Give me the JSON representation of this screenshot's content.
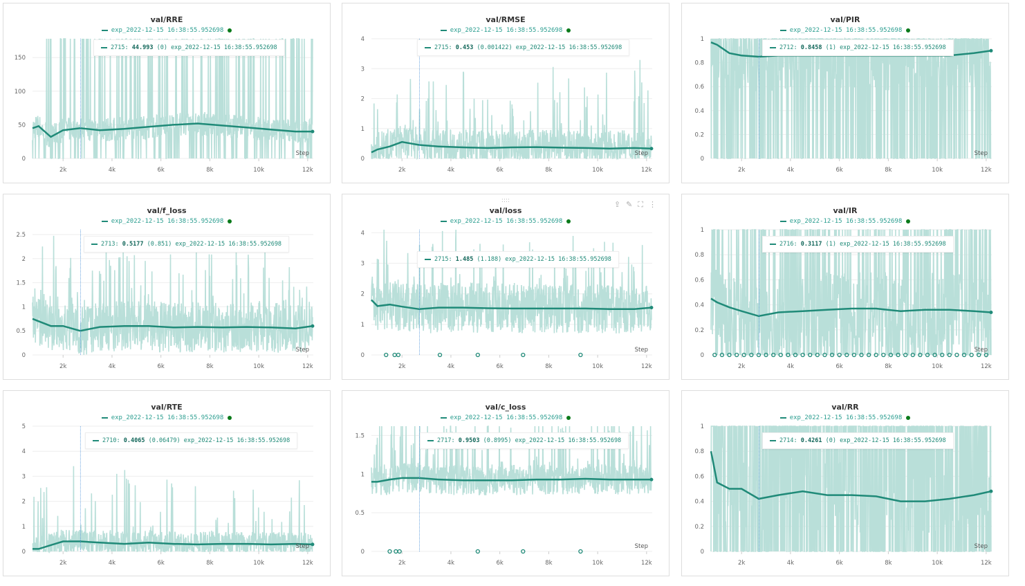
{
  "x_label": "Step",
  "run_name": "exp_2022-12-15 16:38:55.952698",
  "colors": {
    "line": "#1f8a78",
    "raw": "#b9dfd9",
    "hover": "#4a90d9",
    "status_dot": "#0a7a1a"
  },
  "panel_tools": {
    "grip": "::::",
    "icons": [
      "share-icon",
      "edit-icon",
      "fullscreen-icon",
      "more-icon"
    ]
  },
  "chart_data": [
    {
      "type": "line",
      "title": "val/RRE",
      "xticks": [
        "2k",
        "4k",
        "6k",
        "8k",
        "10k",
        "12k"
      ],
      "xlim": [
        750,
        12230
      ],
      "ylim": [
        0,
        178
      ],
      "yticks": [
        0,
        50,
        100,
        150
      ],
      "hover": {
        "step": "2715",
        "value": "44.993",
        "raw": "(0)"
      },
      "x": [
        750,
        1000,
        1500,
        2000,
        2700,
        3500,
        4500,
        5500,
        6500,
        7500,
        8500,
        9500,
        10500,
        11500,
        12200
      ],
      "smoothed": [
        45,
        48,
        32,
        42,
        45,
        42,
        44,
        47,
        50,
        52,
        49,
        46,
        43,
        40,
        40
      ]
    },
    {
      "type": "line",
      "title": "val/RMSE",
      "xticks": [
        "2k",
        "4k",
        "6k",
        "8k",
        "10k",
        "12k"
      ],
      "xlim": [
        750,
        12230
      ],
      "ylim": [
        0,
        4
      ],
      "yticks": [
        0,
        1,
        2,
        3,
        4
      ],
      "hover": {
        "step": "2715",
        "value": "0.453",
        "raw": "(0.001422)"
      },
      "x": [
        750,
        1000,
        1500,
        2000,
        2700,
        3500,
        4500,
        5500,
        6500,
        7500,
        8500,
        9500,
        10500,
        11500,
        12200
      ],
      "smoothed": [
        0.2,
        0.3,
        0.4,
        0.55,
        0.45,
        0.4,
        0.37,
        0.35,
        0.37,
        0.38,
        0.36,
        0.35,
        0.33,
        0.35,
        0.33
      ]
    },
    {
      "type": "line",
      "title": "val/PIR",
      "xticks": [
        "2k",
        "4k",
        "6k",
        "8k",
        "10k",
        "12k"
      ],
      "xlim": [
        750,
        12230
      ],
      "ylim": [
        0,
        1
      ],
      "yticks": [
        0,
        0.2,
        0.4,
        0.6,
        0.8,
        1
      ],
      "hover": {
        "step": "2712",
        "value": "0.8458",
        "raw": "(1)"
      },
      "x": [
        750,
        1000,
        1500,
        2000,
        2700,
        3500,
        4500,
        5500,
        6500,
        7500,
        8500,
        9500,
        10500,
        11500,
        12200
      ],
      "smoothed": [
        0.97,
        0.95,
        0.88,
        0.86,
        0.85,
        0.86,
        0.86,
        0.86,
        0.86,
        0.86,
        0.86,
        0.86,
        0.86,
        0.88,
        0.9
      ]
    },
    {
      "type": "line",
      "title": "val/f_loss",
      "xticks": [
        "2k",
        "4k",
        "6k",
        "8k",
        "10k",
        "12k"
      ],
      "xlim": [
        750,
        12230
      ],
      "ylim": [
        0,
        2.6
      ],
      "yticks": [
        0,
        0.5,
        1,
        1.5,
        2,
        2.5
      ],
      "hover": {
        "step": "2713",
        "value": "0.5177",
        "raw": "(0.851)"
      },
      "x": [
        750,
        1000,
        1500,
        2000,
        2700,
        3500,
        4500,
        5500,
        6500,
        7500,
        8500,
        9500,
        10500,
        11500,
        12200
      ],
      "smoothed": [
        0.75,
        0.7,
        0.6,
        0.6,
        0.5,
        0.58,
        0.6,
        0.6,
        0.57,
        0.58,
        0.57,
        0.58,
        0.57,
        0.55,
        0.6
      ]
    },
    {
      "type": "line",
      "title": "val/loss",
      "xticks": [
        "2k",
        "4k",
        "6k",
        "8k",
        "10k",
        "12k"
      ],
      "xlim": [
        750,
        12230
      ],
      "ylim": [
        0,
        4.1
      ],
      "yticks": [
        0,
        1,
        2,
        3,
        4
      ],
      "hover": {
        "step": "2715",
        "value": "1.485",
        "raw": "(1.188)"
      },
      "x": [
        750,
        1000,
        1500,
        2000,
        2700,
        3500,
        4500,
        5500,
        6500,
        7500,
        8500,
        9500,
        10500,
        11500,
        12200
      ],
      "smoothed": [
        1.8,
        1.6,
        1.65,
        1.58,
        1.5,
        1.55,
        1.55,
        1.53,
        1.52,
        1.52,
        1.52,
        1.52,
        1.5,
        1.5,
        1.55
      ],
      "zero_markers": [
        1350,
        1700,
        1850,
        3550,
        5100,
        6950,
        9300
      ]
    },
    {
      "type": "line",
      "title": "val/IR",
      "xticks": [
        "2k",
        "4k",
        "6k",
        "8k",
        "10k",
        "12k"
      ],
      "xlim": [
        750,
        12230
      ],
      "ylim": [
        0,
        1
      ],
      "yticks": [
        0,
        0.2,
        0.4,
        0.6,
        0.8,
        1
      ],
      "hover": {
        "step": "2716",
        "value": "0.3117",
        "raw": "(1)"
      },
      "x": [
        750,
        1000,
        1500,
        2000,
        2700,
        3500,
        4500,
        5500,
        6500,
        7500,
        8500,
        9500,
        10500,
        11500,
        12200
      ],
      "smoothed": [
        0.45,
        0.42,
        0.38,
        0.35,
        0.31,
        0.34,
        0.35,
        0.36,
        0.37,
        0.37,
        0.35,
        0.36,
        0.36,
        0.35,
        0.34
      ],
      "zero_markers": [
        900,
        1200,
        1500,
        1800,
        2100,
        2400,
        2700,
        3000,
        3300,
        3600,
        3900,
        4200,
        4500,
        4800,
        5100,
        5400,
        5700,
        6000,
        6300,
        6600,
        6900,
        7200,
        7500,
        7800,
        8100,
        8400,
        8700,
        9000,
        9300,
        9600,
        9900,
        10200,
        10500,
        10800,
        11100,
        11400,
        11700,
        12000
      ]
    },
    {
      "type": "line",
      "title": "val/RTE",
      "xticks": [
        "2k",
        "4k",
        "6k",
        "8k",
        "10k",
        "12k"
      ],
      "xlim": [
        750,
        12230
      ],
      "ylim": [
        0,
        5
      ],
      "yticks": [
        0,
        1,
        2,
        3,
        4,
        5
      ],
      "hover": {
        "step": "2710",
        "value": "0.4065",
        "raw": "(0.06479)"
      },
      "x": [
        750,
        1000,
        1500,
        2000,
        2700,
        3500,
        4500,
        5500,
        6500,
        7500,
        8500,
        9500,
        10500,
        11500,
        12200
      ],
      "smoothed": [
        0.1,
        0.1,
        0.25,
        0.4,
        0.4,
        0.35,
        0.3,
        0.35,
        0.3,
        0.28,
        0.3,
        0.3,
        0.28,
        0.3,
        0.28
      ]
    },
    {
      "type": "line",
      "title": "val/c_loss",
      "xticks": [
        "2k",
        "4k",
        "6k",
        "8k",
        "10k",
        "12k"
      ],
      "xlim": [
        750,
        12230
      ],
      "ylim": [
        0,
        1.62
      ],
      "yticks": [
        0,
        0.5,
        1,
        1.5
      ],
      "hover": {
        "step": "2717",
        "value": "0.9503",
        "raw": "(0.8995)"
      },
      "x": [
        750,
        1000,
        1500,
        2000,
        2700,
        3500,
        4500,
        5500,
        6500,
        7500,
        8500,
        9500,
        10500,
        11500,
        12200
      ],
      "smoothed": [
        0.9,
        0.9,
        0.93,
        0.95,
        0.95,
        0.93,
        0.92,
        0.92,
        0.92,
        0.93,
        0.93,
        0.94,
        0.93,
        0.93,
        0.93
      ],
      "zero_markers": [
        1500,
        1750,
        1900,
        5100,
        6950,
        9300
      ]
    },
    {
      "type": "line",
      "title": "val/RR",
      "xticks": [
        "2k",
        "4k",
        "6k",
        "8k",
        "10k",
        "12k"
      ],
      "xlim": [
        750,
        12230
      ],
      "ylim": [
        0,
        1
      ],
      "yticks": [
        0,
        0.2,
        0.4,
        0.6,
        0.8,
        1
      ],
      "hover": {
        "step": "2714",
        "value": "0.4261",
        "raw": "(0)"
      },
      "x": [
        750,
        1000,
        1500,
        2000,
        2700,
        3500,
        4500,
        5500,
        6500,
        7500,
        8500,
        9500,
        10500,
        11500,
        12200
      ],
      "smoothed": [
        0.8,
        0.55,
        0.5,
        0.5,
        0.42,
        0.45,
        0.48,
        0.45,
        0.45,
        0.44,
        0.4,
        0.4,
        0.42,
        0.45,
        0.48
      ]
    }
  ]
}
